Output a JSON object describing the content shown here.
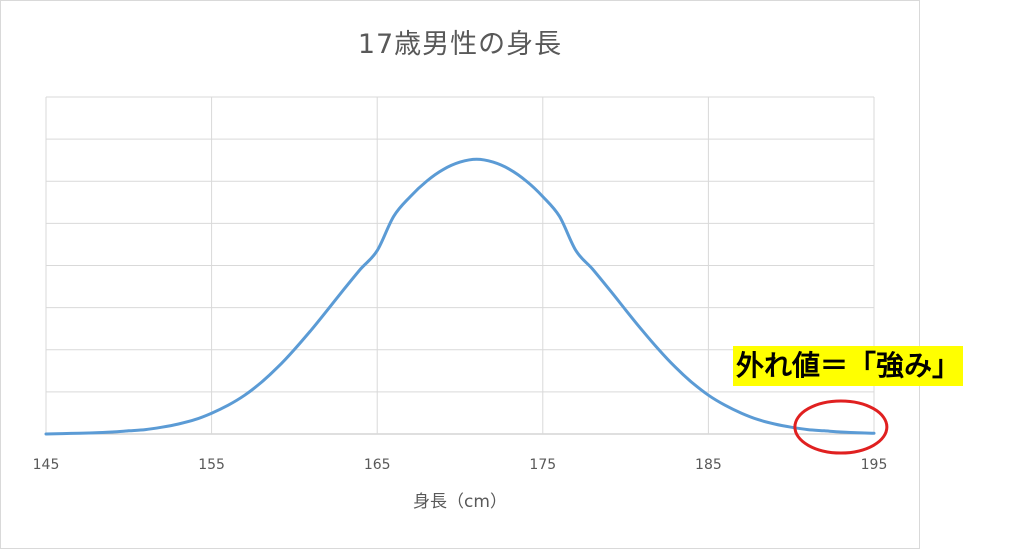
{
  "chart_data": {
    "type": "line",
    "title": "17歳男性の身長",
    "xlabel": "身長（cm）",
    "ylabel": "",
    "xlim": [
      145,
      195
    ],
    "x_ticks": [
      145,
      155,
      165,
      175,
      185,
      195
    ],
    "y_gridlines": 8,
    "y_ticks_labeled": false,
    "grid": true,
    "legend": "none",
    "series": [
      {
        "distribution": "normal",
        "mean": 170.6,
        "sd": 5.8,
        "color": "#5b9bd5",
        "x": [
          145,
          146,
          147,
          148,
          149,
          150,
          151,
          152,
          153,
          154,
          155,
          156,
          157,
          158,
          159,
          160,
          161,
          162,
          163,
          164,
          165,
          166,
          167,
          168,
          169,
          170,
          171,
          172,
          173,
          174,
          175,
          176,
          177,
          178,
          179,
          180,
          181,
          182,
          183,
          184,
          185,
          186,
          187,
          188,
          189,
          190,
          191,
          192,
          193,
          194,
          195
        ],
        "y": [
          0.0,
          0.0001,
          0.0002,
          0.0003,
          0.0005,
          0.0008,
          0.0011,
          0.0017,
          0.0025,
          0.0036,
          0.0052,
          0.0072,
          0.0097,
          0.0129,
          0.0167,
          0.0211,
          0.0259,
          0.031,
          0.0362,
          0.0412,
          0.0458,
          0.0544,
          0.0593,
          0.0632,
          0.0661,
          0.0679,
          0.0686,
          0.0679,
          0.0661,
          0.0632,
          0.0593,
          0.0544,
          0.0458,
          0.0412,
          0.0362,
          0.031,
          0.0259,
          0.0211,
          0.0167,
          0.0129,
          0.0097,
          0.0072,
          0.0052,
          0.0036,
          0.0025,
          0.0017,
          0.0011,
          0.0008,
          0.0005,
          0.0003,
          0.0002
        ]
      }
    ]
  },
  "annotation": {
    "label": "外れ値＝「強み」",
    "highlight_color": "#ffff00",
    "circle_color": "#e02020",
    "target_x": 193
  }
}
